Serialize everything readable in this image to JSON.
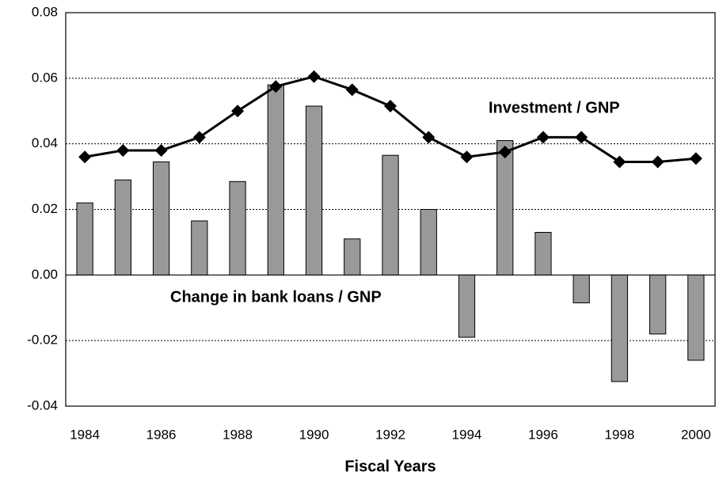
{
  "chart_data": {
    "type": "bar",
    "x_label": "Fiscal Years",
    "categories": [
      "1984",
      null,
      "1986",
      null,
      "1988",
      null,
      "1990",
      null,
      "1992",
      null,
      "1994",
      null,
      "1996",
      null,
      "1998",
      null,
      "2000"
    ],
    "series": [
      {
        "name": "Change in bank loans / GNP",
        "type": "bar",
        "color": "#999999",
        "values": [
          0.022,
          0.029,
          0.0345,
          0.0165,
          0.0285,
          0.058,
          0.0515,
          0.011,
          0.0365,
          0.02,
          -0.019,
          0.041,
          0.013,
          -0.0085,
          -0.0325,
          -0.018,
          -0.026
        ]
      },
      {
        "name": "Investment / GNP",
        "type": "line",
        "color": "#000000",
        "values": [
          0.036,
          0.038,
          0.038,
          0.042,
          0.05,
          0.0575,
          0.0605,
          0.0565,
          0.0515,
          0.042,
          0.036,
          0.0375,
          0.042,
          0.042,
          0.0345,
          0.0345,
          0.0355
        ]
      }
    ],
    "ylim": [
      -0.04,
      0.08
    ],
    "yticks": [
      -0.04,
      -0.02,
      {
        "value": 0,
        "label": "0.00"
      },
      0.02,
      0.04,
      0.06,
      0.08
    ],
    "grid": true
  }
}
